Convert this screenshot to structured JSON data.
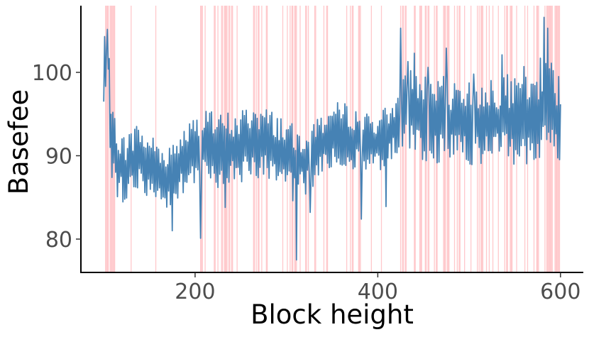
{
  "chart_data": {
    "type": "line",
    "xlabel": "Block height",
    "ylabel": "Basefee",
    "x_range": [
      100,
      600
    ],
    "xlim": [
      75,
      625
    ],
    "ylim": [
      76,
      108
    ],
    "x_ticks": [
      200,
      400,
      600
    ],
    "x_tick_labels": [
      "200",
      "400",
      "600"
    ],
    "y_ticks": [
      80,
      90,
      100
    ],
    "y_tick_labels": [
      "80",
      "90",
      "100"
    ],
    "grid": false,
    "line_color": "#4682B4",
    "highlight_color": "#FFC8CB",
    "highlighted_blocks": [
      102,
      103,
      104,
      105,
      107,
      108,
      109,
      110,
      111,
      112,
      130,
      157,
      206,
      207,
      208,
      211,
      221,
      222,
      225,
      229,
      230,
      232,
      233,
      234,
      235,
      237,
      238,
      240,
      241,
      246,
      264,
      265,
      267,
      269,
      270,
      273,
      278,
      279,
      296,
      301,
      304,
      306,
      307,
      309,
      310,
      311,
      315,
      321,
      322,
      324,
      331,
      332,
      341,
      344,
      345,
      366,
      370,
      372,
      373,
      379,
      380,
      381,
      393,
      404,
      425,
      427,
      428,
      430,
      431,
      440,
      441,
      446,
      447,
      448,
      452,
      453,
      455,
      456,
      462,
      464,
      465,
      472,
      473,
      474,
      476,
      477,
      478,
      484,
      487,
      489,
      490,
      495,
      502,
      509,
      511,
      513,
      514,
      515,
      519,
      522,
      526,
      532,
      539,
      541,
      542,
      545,
      546,
      547,
      552,
      561,
      564,
      571,
      574,
      575,
      576,
      583,
      585,
      586,
      587,
      588,
      589,
      590,
      591,
      594,
      595,
      596,
      597,
      598,
      599
    ],
    "series": [
      {
        "anchors": [
          [
            100,
            93
          ],
          [
            101,
            104
          ],
          [
            102,
            96
          ],
          [
            104,
            102
          ],
          [
            106,
            97
          ],
          [
            108,
            92
          ],
          [
            112,
            90
          ],
          [
            118,
            89
          ],
          [
            125,
            88
          ],
          [
            135,
            90
          ],
          [
            145,
            89
          ],
          [
            155,
            88.5
          ],
          [
            165,
            87.5
          ],
          [
            175,
            87
          ],
          [
            185,
            89
          ],
          [
            195,
            90
          ],
          [
            205,
            90.5
          ],
          [
            215,
            91
          ],
          [
            225,
            90.5
          ],
          [
            235,
            91
          ],
          [
            245,
            90.5
          ],
          [
            255,
            91.5
          ],
          [
            265,
            92
          ],
          [
            275,
            91.5
          ],
          [
            285,
            91
          ],
          [
            295,
            90.5
          ],
          [
            305,
            89.5
          ],
          [
            315,
            89
          ],
          [
            325,
            90
          ],
          [
            335,
            91
          ],
          [
            345,
            92
          ],
          [
            355,
            92.5
          ],
          [
            365,
            92.5
          ],
          [
            375,
            92
          ],
          [
            385,
            91.5
          ],
          [
            395,
            91.5
          ],
          [
            405,
            92
          ],
          [
            415,
            93
          ],
          [
            423,
            93.5
          ],
          [
            430,
            96
          ],
          [
            440,
            95
          ],
          [
            450,
            94.5
          ],
          [
            460,
            94
          ],
          [
            470,
            94.5
          ],
          [
            480,
            94
          ],
          [
            490,
            94.5
          ],
          [
            500,
            94
          ],
          [
            510,
            94
          ],
          [
            520,
            94.5
          ],
          [
            530,
            94
          ],
          [
            540,
            94.5
          ],
          [
            550,
            94
          ],
          [
            560,
            94
          ],
          [
            570,
            94.5
          ],
          [
            580,
            95
          ],
          [
            585,
            97
          ],
          [
            590,
            96
          ],
          [
            595,
            94
          ],
          [
            600,
            92
          ]
        ],
        "amplitude": [
          [
            100,
            5
          ],
          [
            110,
            4.5
          ],
          [
            150,
            4
          ],
          [
            200,
            4.5
          ],
          [
            300,
            4.5
          ],
          [
            340,
            4
          ],
          [
            420,
            3.5
          ],
          [
            425,
            5
          ],
          [
            600,
            5.5
          ]
        ],
        "spikes": [
          [
            101,
            104.3
          ],
          [
            103,
            102.6
          ],
          [
            105,
            100.4
          ],
          [
            175,
            81
          ],
          [
            206,
            80.1
          ],
          [
            233,
            83.8
          ],
          [
            307,
            84.6
          ],
          [
            311,
            77.5
          ],
          [
            326,
            83.2
          ],
          [
            382,
            82.4
          ],
          [
            409,
            83.9
          ],
          [
            425,
            105.3
          ],
          [
            433,
            101.3
          ],
          [
            440,
            102.3
          ],
          [
            455,
            100.6
          ],
          [
            475,
            102.9
          ],
          [
            505,
            99.8
          ],
          [
            536,
            102.1
          ],
          [
            560,
            100.7
          ],
          [
            578,
            101.7
          ],
          [
            582,
            106.6
          ],
          [
            586,
            105.3
          ],
          [
            590,
            101.1
          ],
          [
            598,
            99.5
          ]
        ]
      }
    ]
  }
}
